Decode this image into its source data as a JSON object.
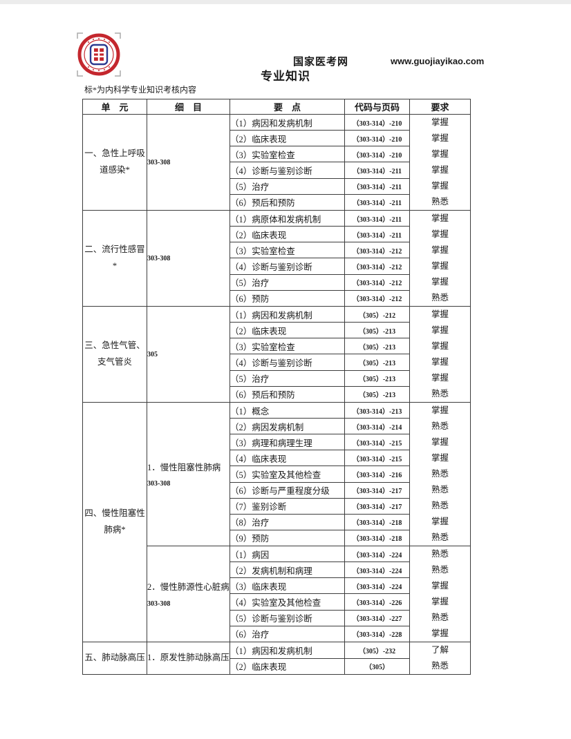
{
  "header": {
    "site_name": "国家医考网",
    "site_url": "www.guojiayikao.com",
    "page_title": "专业知识",
    "note": "标*为内科学专业知识考核内容",
    "logo_alt": "国家医考网"
  },
  "colors": {
    "logo_red": "#c4272e",
    "logo_blue": "#2b3990",
    "border": "#3c3c3c",
    "text": "#1a1a1a"
  },
  "table": {
    "columns": [
      "单　元",
      "细　目",
      "要　点",
      "代码与页码",
      "要求"
    ],
    "sections": [
      {
        "unit": "一、急性上呼吸道感染*",
        "subsections": [
          {
            "detail_title": "",
            "detail_code": "303-308",
            "items": [
              {
                "point": "（1）病因和发病机制",
                "code": "（303-314）-210",
                "requirement": "掌握"
              },
              {
                "point": "（2）临床表现",
                "code": "（303-314）-210",
                "requirement": "掌握"
              },
              {
                "point": "（3）实验室检查",
                "code": "（303-314）-210",
                "requirement": "掌握"
              },
              {
                "point": "（4）诊断与鉴别诊断",
                "code": "（303-314）-211",
                "requirement": "掌握"
              },
              {
                "point": "（5）治疗",
                "code": "（303-314）-211",
                "requirement": "掌握"
              },
              {
                "point": "（6）预后和预防",
                "code": "（303-314）-211",
                "requirement": "熟悉"
              }
            ]
          }
        ]
      },
      {
        "unit": "二、流行性感冒*",
        "subsections": [
          {
            "detail_title": "",
            "detail_code": "303-308",
            "items": [
              {
                "point": "（1）病原体和发病机制",
                "code": "（303-314）-211",
                "requirement": "掌握"
              },
              {
                "point": "（2）临床表现",
                "code": "（303-314）-211",
                "requirement": "掌握"
              },
              {
                "point": "（3）实验室检查",
                "code": "（303-314）-212",
                "requirement": "掌握"
              },
              {
                "point": "（4）诊断与鉴别诊断",
                "code": "（303-314）-212",
                "requirement": "掌握"
              },
              {
                "point": "（5）治疗",
                "code": "（303-314）-212",
                "requirement": "掌握"
              },
              {
                "point": "（6）预防",
                "code": "（303-314）-212",
                "requirement": "熟悉"
              }
            ]
          }
        ]
      },
      {
        "unit": "三、急性气管、支气管炎",
        "subsections": [
          {
            "detail_title": "",
            "detail_code": "305",
            "items": [
              {
                "point": "（1）病因和发病机制",
                "code": "（305）-212",
                "requirement": "掌握"
              },
              {
                "point": "（2）临床表现",
                "code": "（305）-213",
                "requirement": "掌握"
              },
              {
                "point": "（3）实验室检查",
                "code": "（305）-213",
                "requirement": "掌握"
              },
              {
                "point": "（4）诊断与鉴别诊断",
                "code": "（305）-213",
                "requirement": "掌握"
              },
              {
                "point": "（5）治疗",
                "code": "（305）-213",
                "requirement": "掌握"
              },
              {
                "point": "（6）预后和预防",
                "code": "（305）-213",
                "requirement": "熟悉"
              }
            ]
          }
        ]
      },
      {
        "unit": "四、慢性阻塞性肺病*",
        "subsections": [
          {
            "detail_title": "1．慢性阻塞性肺病",
            "detail_code": "303-308",
            "items": [
              {
                "point": "（1）概念",
                "code": "（303-314）-213",
                "requirement": "掌握"
              },
              {
                "point": "（2）病因发病机制",
                "code": "（303-314）-214",
                "requirement": "熟悉"
              },
              {
                "point": "（3）病理和病理生理",
                "code": "（303-314）-215",
                "requirement": "掌握"
              },
              {
                "point": "（4）临床表现",
                "code": "（303-314）-215",
                "requirement": "掌握"
              },
              {
                "point": "（5）实验室及其他检查",
                "code": "（303-314）-216",
                "requirement": "熟悉"
              },
              {
                "point": "（6）诊断与严重程度分级",
                "code": "（303-314）-217",
                "requirement": "熟悉"
              },
              {
                "point": "（7）鉴别诊断",
                "code": "（303-314）-217",
                "requirement": "熟悉"
              },
              {
                "point": "（8）治疗",
                "code": "（303-314）-218",
                "requirement": "掌握"
              },
              {
                "point": "（9）预防",
                "code": "（303-314）-218",
                "requirement": "熟悉"
              }
            ]
          },
          {
            "detail_title": "2．慢性肺源性心脏病",
            "detail_code": "303-308",
            "items": [
              {
                "point": "（1）病因",
                "code": "（303-314）-224",
                "requirement": "熟悉"
              },
              {
                "point": "（2）发病机制和病理",
                "code": "（303-314）-224",
                "requirement": "熟悉"
              },
              {
                "point": "（3）临床表现",
                "code": "（303-314）-224",
                "requirement": "掌握"
              },
              {
                "point": "（4）实验室及其他检查",
                "code": "（303-314）-226",
                "requirement": "掌握"
              },
              {
                "point": "（5）诊断与鉴别诊断",
                "code": "（303-314）-227",
                "requirement": "熟悉"
              },
              {
                "point": "（6）治疗",
                "code": "（303-314）-228",
                "requirement": "掌握"
              }
            ]
          }
        ]
      },
      {
        "unit": "五、肺动脉高压",
        "subsections": [
          {
            "detail_title": "1．原发性肺动脉高压",
            "detail_code": "",
            "items": [
              {
                "point": "（1）病因和发病机制",
                "code": "（305）-232",
                "requirement": "了解"
              },
              {
                "point": "（2）临床表现",
                "code": "（305）",
                "requirement": "熟悉"
              }
            ]
          }
        ]
      }
    ]
  }
}
